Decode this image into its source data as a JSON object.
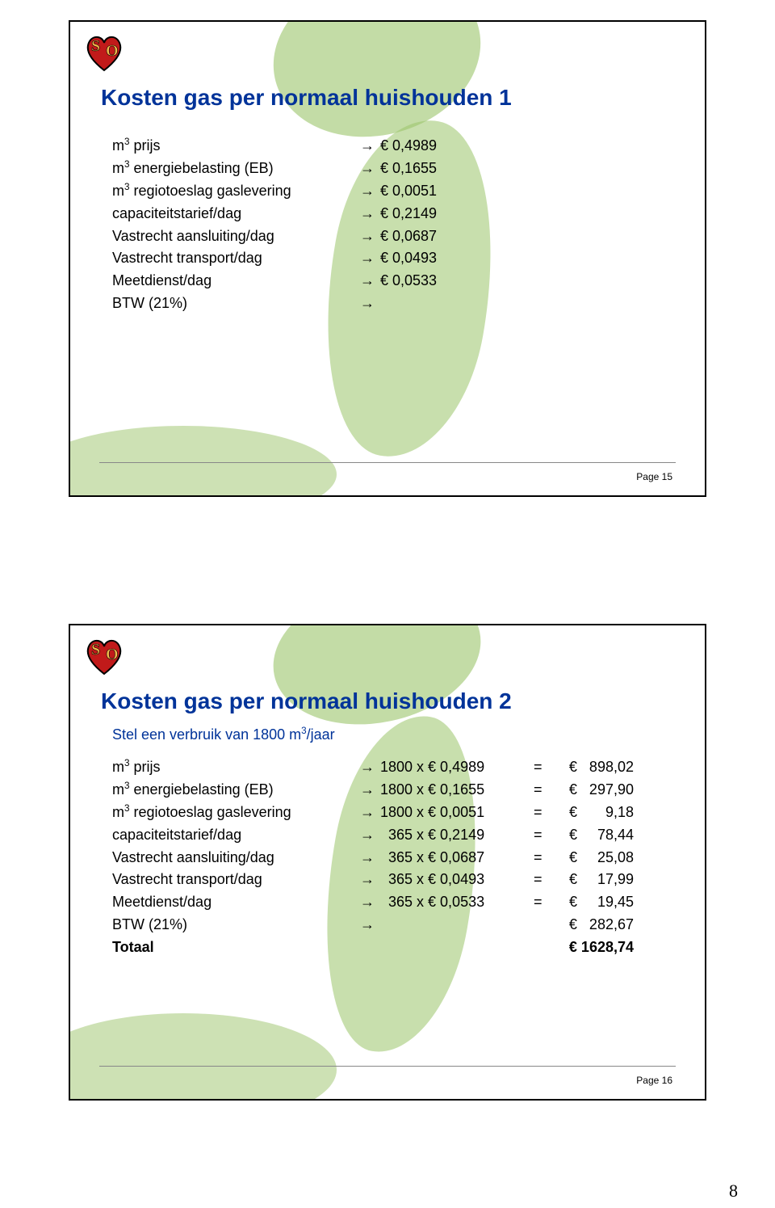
{
  "slide1": {
    "title": "Kosten gas per normaal huishouden 1",
    "rows": [
      {
        "label_html": "m<sup>3</sup> prijs",
        "value": "€ 0,4989"
      },
      {
        "label_html": "m<sup>3</sup> energiebelasting (EB)",
        "value": "€ 0,1655"
      },
      {
        "label_html": "m<sup>3</sup> regiotoeslag gaslevering",
        "value": "€ 0,0051"
      },
      {
        "label_html": "capaciteitstarief/dag",
        "value": "€ 0,2149"
      },
      {
        "label_html": "Vastrecht aansluiting/dag",
        "value": "€ 0,0687"
      },
      {
        "label_html": "Vastrecht transport/dag",
        "value": "€ 0,0493"
      },
      {
        "label_html": "Meetdienst/dag",
        "value": "€ 0,0533"
      },
      {
        "label_html": "BTW (21%)",
        "value": ""
      }
    ],
    "page_label": "Page 15"
  },
  "slide2": {
    "title": "Kosten gas per normaal huishouden 2",
    "subtitle_html": "Stel een verbruik van 1800 m<sup>3</sup>/jaar",
    "rows": [
      {
        "label_html": "m<sup>3</sup> prijs",
        "calc": "1800 x € 0,4989",
        "eq": "=",
        "res": "€   898,02"
      },
      {
        "label_html": "m<sup>3</sup> energiebelasting (EB)",
        "calc": "1800 x € 0,1655",
        "eq": "=",
        "res": "€   297,90"
      },
      {
        "label_html": "m<sup>3</sup> regiotoeslag gaslevering",
        "calc": "1800 x € 0,0051",
        "eq": "=",
        "res": "€       9,18"
      },
      {
        "label_html": "capaciteitstarief/dag",
        "calc": "  365 x € 0,2149",
        "eq": "=",
        "res": "€     78,44"
      },
      {
        "label_html": "Vastrecht aansluiting/dag",
        "calc": "  365 x € 0,0687",
        "eq": "=",
        "res": "€     25,08"
      },
      {
        "label_html": "Vastrecht transport/dag",
        "calc": "  365 x € 0,0493",
        "eq": "=",
        "res": "€     17,99"
      },
      {
        "label_html": "Meetdienst/dag",
        "calc": "  365 x € 0,0533",
        "eq": "=",
        "res": "€     19,45"
      },
      {
        "label_html": "BTW (21%)",
        "calc": "",
        "eq": "",
        "res": "€   282,67"
      }
    ],
    "total": {
      "label": "Totaal",
      "res": "€ 1628,74"
    },
    "page_label": "Page 16"
  },
  "arrow": "→",
  "footer_pagenum": "8",
  "colors": {
    "title": "#003399",
    "subtitle": "#003399",
    "body": "#000000",
    "blob": "#9bc46a",
    "heart": "#c11a1a",
    "heart_stroke": "#000000",
    "s_o": "#f2b84b"
  }
}
